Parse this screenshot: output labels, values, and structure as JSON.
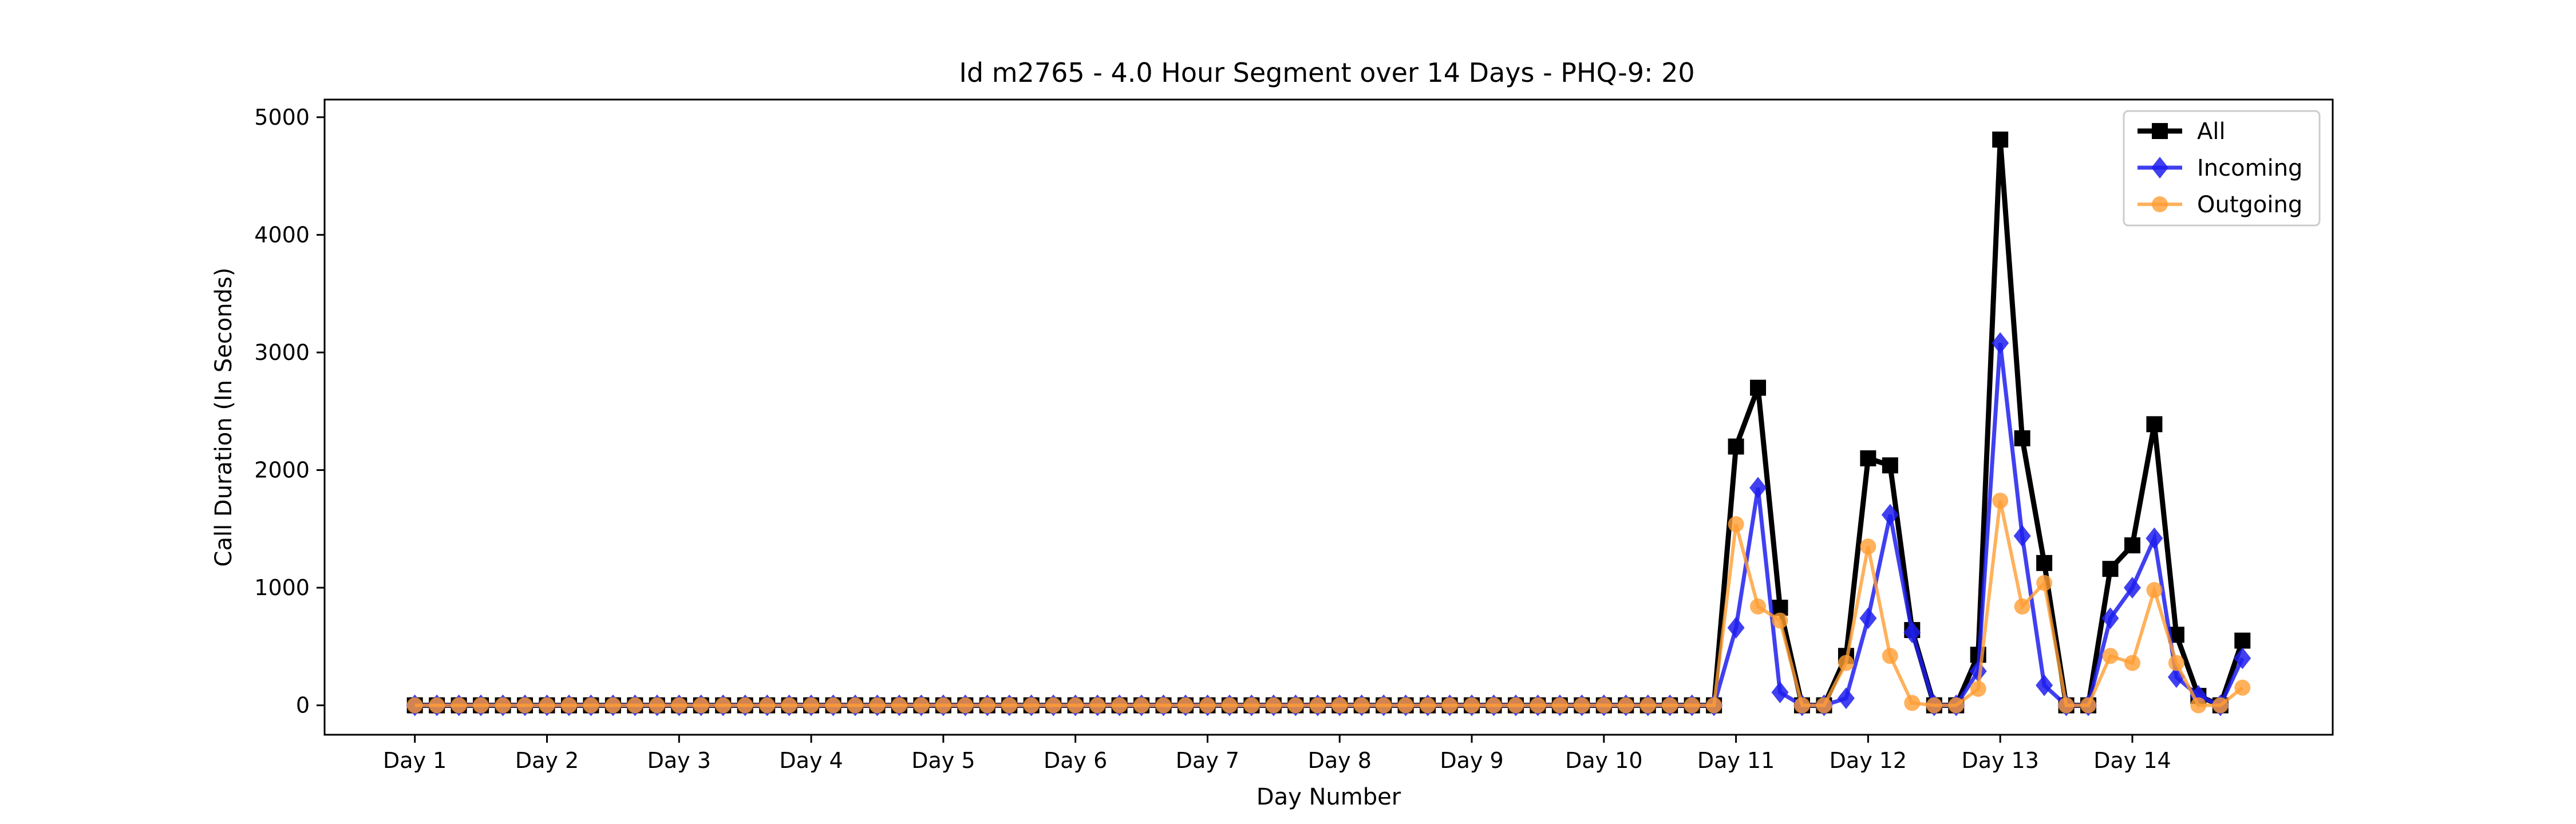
{
  "chart_data": {
    "type": "line",
    "title": "Id m2765 - 4.0 Hour Segment over 14 Days - PHQ-9: 20",
    "xlabel": "Day Number",
    "ylabel": "Call Duration (In Seconds)",
    "ylim": [
      -250,
      5150
    ],
    "xlim": [
      -4.1,
      87.1
    ],
    "yticks": [
      0,
      1000,
      2000,
      3000,
      4000,
      5000
    ],
    "xticks": [
      {
        "x": 0,
        "label": "Day 1"
      },
      {
        "x": 6,
        "label": "Day 2"
      },
      {
        "x": 12,
        "label": "Day 3"
      },
      {
        "x": 18,
        "label": "Day 4"
      },
      {
        "x": 24,
        "label": "Day 5"
      },
      {
        "x": 30,
        "label": "Day 6"
      },
      {
        "x": 36,
        "label": "Day 7"
      },
      {
        "x": 42,
        "label": "Day 8"
      },
      {
        "x": 48,
        "label": "Day 9"
      },
      {
        "x": 54,
        "label": "Day 10"
      },
      {
        "x": 60,
        "label": "Day 11"
      },
      {
        "x": 66,
        "label": "Day 12"
      },
      {
        "x": 72,
        "label": "Day 13"
      },
      {
        "x": 78,
        "label": "Day 14"
      }
    ],
    "legend_position": "top-right",
    "series": [
      {
        "name": "All",
        "color": "#000000",
        "marker": "square",
        "values": [
          0,
          0,
          0,
          0,
          0,
          0,
          0,
          0,
          0,
          0,
          0,
          0,
          0,
          0,
          0,
          0,
          0,
          0,
          0,
          0,
          0,
          0,
          0,
          0,
          0,
          0,
          0,
          0,
          0,
          0,
          0,
          0,
          0,
          0,
          0,
          0,
          0,
          0,
          0,
          0,
          0,
          0,
          0,
          0,
          0,
          0,
          0,
          0,
          0,
          0,
          0,
          0,
          0,
          0,
          0,
          0,
          0,
          0,
          0,
          0,
          2200,
          2700,
          830,
          0,
          0,
          420,
          2100,
          2040,
          640,
          0,
          0,
          430,
          4810,
          2270,
          1210,
          0,
          0,
          1160,
          1360,
          2390,
          600,
          80,
          0,
          550
        ]
      },
      {
        "name": "Incoming",
        "color": "#1f1fef",
        "marker": "diamond",
        "values": [
          0,
          0,
          0,
          0,
          0,
          0,
          0,
          0,
          0,
          0,
          0,
          0,
          0,
          0,
          0,
          0,
          0,
          0,
          0,
          0,
          0,
          0,
          0,
          0,
          0,
          0,
          0,
          0,
          0,
          0,
          0,
          0,
          0,
          0,
          0,
          0,
          0,
          0,
          0,
          0,
          0,
          0,
          0,
          0,
          0,
          0,
          0,
          0,
          0,
          0,
          0,
          0,
          0,
          0,
          0,
          0,
          0,
          0,
          0,
          0,
          660,
          1850,
          110,
          0,
          0,
          60,
          740,
          1620,
          620,
          0,
          0,
          290,
          3080,
          1440,
          170,
          0,
          0,
          740,
          1000,
          1420,
          240,
          80,
          0,
          400
        ]
      },
      {
        "name": "Outgoing",
        "color": "#ff9d33",
        "marker": "circle",
        "values": [
          0,
          0,
          0,
          0,
          0,
          0,
          0,
          0,
          0,
          0,
          0,
          0,
          0,
          0,
          0,
          0,
          0,
          0,
          0,
          0,
          0,
          0,
          0,
          0,
          0,
          0,
          0,
          0,
          0,
          0,
          0,
          0,
          0,
          0,
          0,
          0,
          0,
          0,
          0,
          0,
          0,
          0,
          0,
          0,
          0,
          0,
          0,
          0,
          0,
          0,
          0,
          0,
          0,
          0,
          0,
          0,
          0,
          0,
          0,
          0,
          1540,
          840,
          720,
          0,
          0,
          360,
          1350,
          420,
          20,
          0,
          0,
          140,
          1740,
          840,
          1040,
          0,
          0,
          420,
          360,
          980,
          360,
          0,
          0,
          150
        ]
      }
    ]
  }
}
